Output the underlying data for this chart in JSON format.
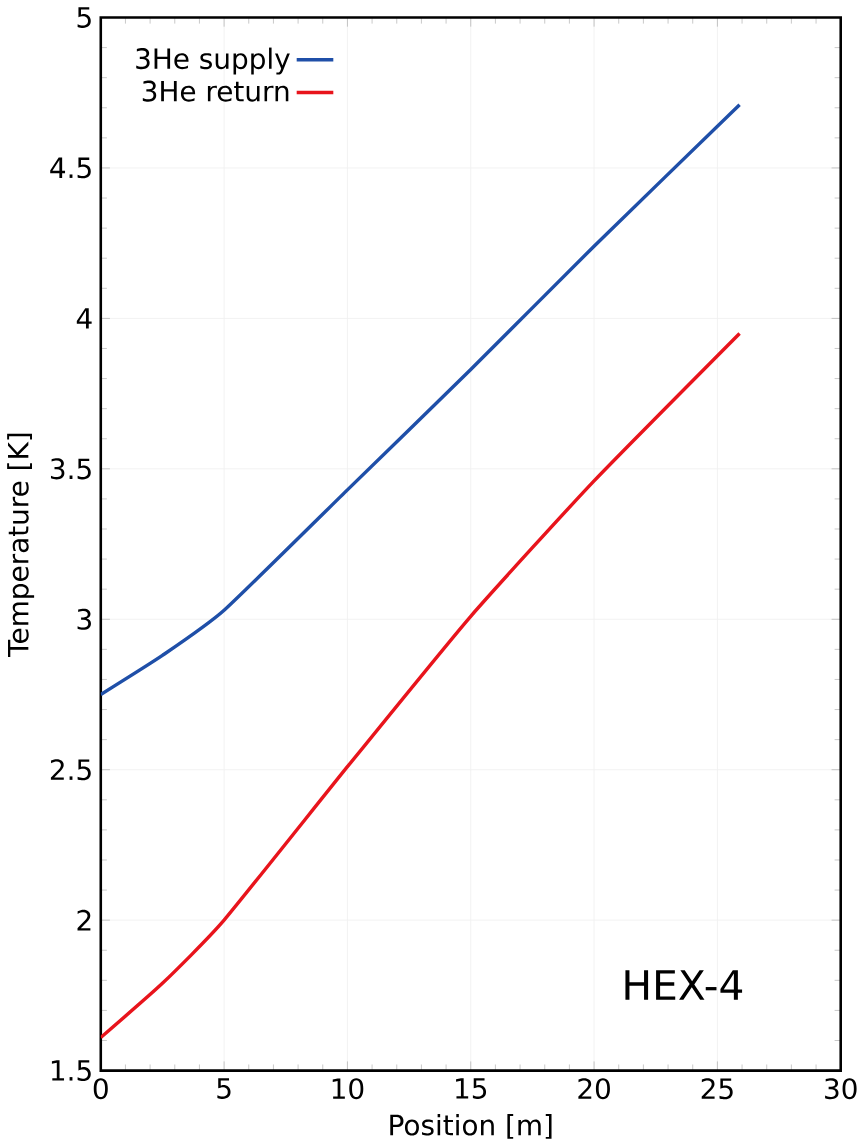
{
  "chart_data": {
    "type": "line",
    "xlabel": "Position [m]",
    "ylabel": "Temperature [K]",
    "annotations": [
      "HEX-4"
    ],
    "xlim": [
      0,
      30
    ],
    "ylim": [
      1.5,
      5
    ],
    "xticks": [
      0,
      5,
      10,
      15,
      20,
      25,
      30
    ],
    "yticks": [
      1.5,
      2,
      2.5,
      3,
      3.5,
      4,
      4.5,
      5
    ],
    "grid": true,
    "legend": "top left",
    "line_style": "solid",
    "marker": "none",
    "series": [
      {
        "name": "3He supply",
        "color": "#1f4fa8",
        "x": [
          0,
          2.5,
          5,
          10,
          15,
          20,
          25.9
        ],
        "values": [
          2.75,
          2.88,
          3.03,
          3.43,
          3.83,
          4.24,
          4.71
        ]
      },
      {
        "name": "3He return",
        "color": "#e8141c",
        "x": [
          0,
          2.5,
          5,
          10,
          15,
          20,
          25.9
        ],
        "values": [
          1.61,
          1.79,
          2.0,
          2.51,
          3.01,
          3.46,
          3.95
        ]
      }
    ]
  }
}
